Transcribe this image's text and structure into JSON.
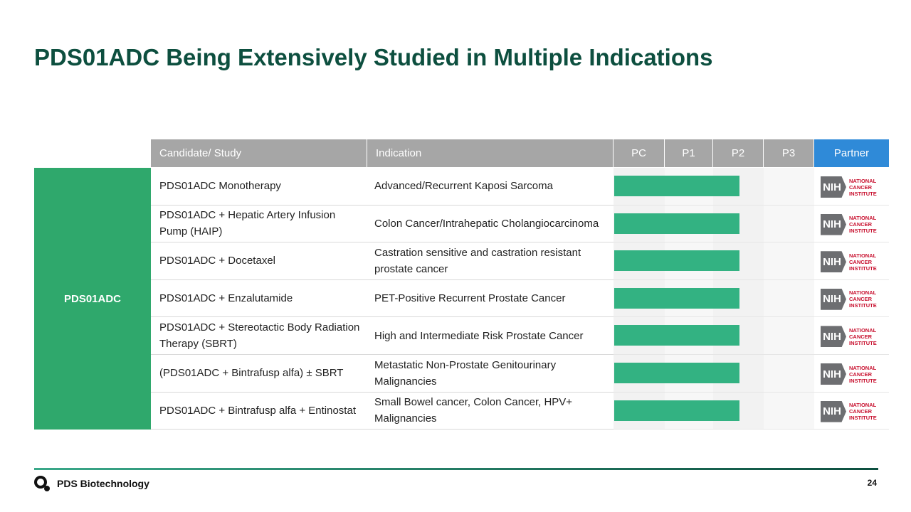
{
  "title": "PDS01ADC Being Extensively Studied in Multiple Indications",
  "table": {
    "header": [
      "Candidate/ Study",
      "Indication",
      "PC",
      "P1",
      "P2",
      "P3",
      "Partner"
    ],
    "group": "PDS01ADC",
    "rows": [
      {
        "study": "PDS01ADC Monotherapy",
        "indication": "Advanced/Recurrent Kaposi Sarcoma",
        "partner": {
          "mark": "NIH",
          "lines": [
            "NATIONAL",
            "CANCER",
            "INSTITUTE"
          ]
        }
      },
      {
        "study": "PDS01ADC + Hepatic Artery Infusion Pump (HAIP)",
        "indication": "Colon Cancer/Intrahepatic Cholangiocarcinoma",
        "partner": {
          "mark": "NIH",
          "lines": [
            "NATIONAL",
            "CANCER",
            "INSTITUTE"
          ]
        }
      },
      {
        "study": "PDS01ADC + Docetaxel",
        "indication": "Castration sensitive and castration resistant prostate cancer",
        "partner": {
          "mark": "NIH",
          "lines": [
            "NATIONAL",
            "CANCER",
            "INSTITUTE"
          ]
        }
      },
      {
        "study": "PDS01ADC + Enzalutamide",
        "indication": "PET-Positive Recurrent Prostate Cancer",
        "partner": {
          "mark": "NIH",
          "lines": [
            "NATIONAL",
            "CANCER",
            "INSTITUTE"
          ]
        }
      },
      {
        "study": "PDS01ADC + Stereotactic Body Radiation Therapy (SBRT)",
        "indication": "High and Intermediate Risk Prostate Cancer",
        "partner": {
          "mark": "NIH",
          "lines": [
            "NATIONAL",
            "CANCER",
            "INSTITUTE"
          ]
        }
      },
      {
        "study": "(PDS01ADC + Bintrafusp alfa) ± SBRT",
        "indication": "Metastatic Non-Prostate Genitourinary Malignancies",
        "partner": {
          "mark": "NIH",
          "lines": [
            "NATIONAL",
            "CANCER",
            "INSTITUTE"
          ]
        }
      },
      {
        "study": "PDS01ADC + Bintrafusp alfa + Entinostat",
        "indication": "Small Bowel cancer, Colon Cancer, HPV+ Malignancies",
        "partner": {
          "mark": "NIH",
          "lines": [
            "NATIONAL",
            "CANCER",
            "INSTITUTE"
          ]
        }
      }
    ]
  },
  "footer": {
    "company": "PDS Biotechnology",
    "page": 24
  }
}
